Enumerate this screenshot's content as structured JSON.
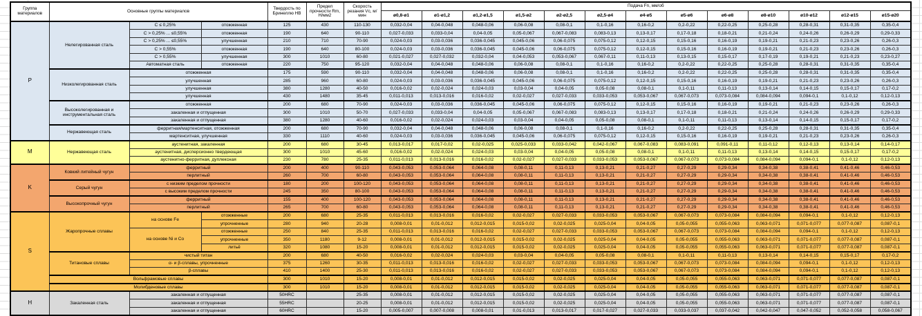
{
  "header": {
    "col_group": "Группа материалов",
    "col_main": "Основные группы материалов",
    "col_hb": "Твердость по Бринеллю НВ",
    "col_rm": "Предел прочности Rm, Н/мм2",
    "col_vc": "Скорость резания Vc, м/мин",
    "col_feed": "Подача Fn, мм/об",
    "diameters": [
      "ø0,8-ø1",
      "ø1-ø1,2",
      "ø1,2-ø1,5",
      "ø1,5-ø2",
      "ø2-ø2,5",
      "ø2,5-ø4",
      "ø4-ø5",
      "ø5-ø6",
      "ø6-ø8",
      "ø8-ø10",
      "ø10-ø12",
      "ø12-ø15",
      "ø15-ø20"
    ]
  },
  "colors": {
    "group_p": "#dce6f1",
    "group_m": "#ffff99",
    "group_k": "#f3a66e",
    "group_s": "#fcc457",
    "group_h": "#d9d9d9",
    "grid": "#2b2b2b"
  },
  "feed_patterns": {
    "A": [
      "0,032-0,04",
      "0,04-0,048",
      "0,048-0,06",
      "0,06-0,08",
      "0,08-0,1",
      "0,1-0,16",
      "0,16-0,2",
      "0,2-0,22",
      "0,22-0,25",
      "0,25-0,28",
      "0,28-0,31",
      "0,31-0,35",
      "0,35-0,4"
    ],
    "B": [
      "0,027-0,033",
      "0,033-0,04",
      "0,04-0,05",
      "0,05-0,067",
      "0,067-0,083",
      "0,083-0,13",
      "0,13-0,17",
      "0,17-0,18",
      "0,18-0,21",
      "0,21-0,24",
      "0,24-0,26",
      "0,26-0,29",
      "0,29-0,33"
    ],
    "C": [
      "0,024-0,03",
      "0,03-0,036",
      "0,036-0,045",
      "0,045-0,06",
      "0,06-0,075",
      "0,075-0,12",
      "0,12-0,15",
      "0,15-0,16",
      "0,16-0,19",
      "0,19-0,21",
      "0,21-0,23",
      "0,23-0,26",
      "0,26-0,3"
    ],
    "D": [
      "0,021-0,027",
      "0,027-0,032",
      "0,032-0,04",
      "0,04-0,053",
      "0,053-0,067",
      "0,067-0,11",
      "0,11-0,13",
      "0,13-0,15",
      "0,15-0,17",
      "0,17-0,19",
      "0,19-0,21",
      "0,21-0,23",
      "0,23-0,27"
    ],
    "E": [
      "0,016-0,02",
      "0,02-0,024",
      "0,024-0,03",
      "0,03-0,04",
      "0,04-0,05",
      "0,05-0,08",
      "0,08-0,1",
      "0,1-0,11",
      "0,11-0,13",
      "0,13-0,14",
      "0,14-0,15",
      "0,15-0,17",
      "0,17-0,2"
    ],
    "F": [
      "0,011-0,013",
      "0,013-0,016",
      "0,016-0,02",
      "0,02-0,027",
      "0,027-0,033",
      "0,033-0,053",
      "0,053-0,067",
      "0,067-0,073",
      "0,073-0,084",
      "0,084-0,094",
      "0,094-0,1",
      "0,1-0,12",
      "0,12-0,13"
    ],
    "G": [
      "0,013-0,017",
      "0,017-0,02",
      "0,02-0,025",
      "0,025-0,033",
      "0,033-0,042",
      "0,042-0,067",
      "0,067-0,083",
      "0,083-0,091",
      "0,091-0,11",
      "0,11-0,12",
      "0,12-0,13",
      "0,13-0,14",
      "0,14-0,17"
    ],
    "H": [
      "0,043-0,053",
      "0,053-0,064",
      "0,064-0,08",
      "0,08-0,11",
      "0,11-0,13",
      "0,13-0,21",
      "0,21-0,27",
      "0,27-0,29",
      "0,29-0,34",
      "0,34-0,38",
      "0,38-0,41",
      "0,41-0,46",
      "0,46-0,53"
    ],
    "I": [
      "0,008-0,01",
      "0,01-0,012",
      "0,012-0,015",
      "0,015-0,02",
      "0,02-0,025",
      "0,025-0,04",
      "0,04-0,05",
      "0,05-0,055",
      "0,055-0,063",
      "0,063-0,071",
      "0,071-0,077",
      "0,077-0,087",
      "0,087-0,1"
    ],
    "J": [
      "0,005-0,007",
      "0,007-0,008",
      "0,008-0,01",
      "0,01-0,013",
      "0,013-0,017",
      "0,017-0,027",
      "0,027-0,033",
      "0,033-0,037",
      "0,037-0,042",
      "0,042-0,047",
      "0,047-0,052",
      "0,052-0,058",
      "0,058-0,067"
    ]
  },
  "rows": [
    {
      "band": "p",
      "tb": true,
      "fp": "A",
      "cells": [
        {
          "t": "P",
          "rs": 15
        },
        {
          "t": "Нелегированная сталь",
          "rs": 6
        },
        {
          "t": "C ≤ 0,25%"
        },
        {
          "t": "отожженная"
        },
        {
          "t": "125"
        },
        {
          "t": "430"
        },
        {
          "t": "110-130"
        }
      ]
    },
    {
      "band": "p",
      "fp": "B",
      "cells": [
        {
          "t": "C > 0,25% ... ≤0,55%"
        },
        {
          "t": "отожженная"
        },
        {
          "t": "190"
        },
        {
          "t": "640"
        },
        {
          "t": "90-110"
        }
      ]
    },
    {
      "band": "p",
      "fp": "C",
      "cells": [
        {
          "t": "C > 0,25% ... ≤0,55%"
        },
        {
          "t": "улучшенная"
        },
        {
          "t": "210"
        },
        {
          "t": "710"
        },
        {
          "t": "70-90"
        }
      ]
    },
    {
      "band": "p",
      "fp": "C",
      "cells": [
        {
          "t": "C > 0,55%"
        },
        {
          "t": "отожженная"
        },
        {
          "t": "190"
        },
        {
          "t": "640"
        },
        {
          "t": "80-100"
        }
      ]
    },
    {
      "band": "p",
      "fp": "D",
      "cells": [
        {
          "t": "C > 0,55%"
        },
        {
          "t": "улучшенная"
        },
        {
          "t": "300"
        },
        {
          "t": "1010"
        },
        {
          "t": "60-80"
        }
      ]
    },
    {
      "band": "p",
      "fp": "A",
      "cells": [
        {
          "t": "Автоматная сталь"
        },
        {
          "t": "отожженная"
        },
        {
          "t": "220"
        },
        {
          "t": "750"
        },
        {
          "t": "95-120"
        }
      ]
    },
    {
      "band": "p",
      "tb": true,
      "fp": "A",
      "cells": [
        {
          "t": "Низколегированная сталь",
          "rs": 4
        },
        {
          "t": "отожженная",
          "cs": 2
        },
        {
          "t": "175"
        },
        {
          "t": "590"
        },
        {
          "t": "90-110"
        }
      ]
    },
    {
      "band": "p",
      "fp": "C",
      "cells": [
        {
          "t": "улучшенная",
          "cs": 2
        },
        {
          "t": "285"
        },
        {
          "t": "960"
        },
        {
          "t": "60-80"
        }
      ]
    },
    {
      "band": "p",
      "fp": "E",
      "cells": [
        {
          "t": "улучшенная",
          "cs": 2
        },
        {
          "t": "380"
        },
        {
          "t": "1280"
        },
        {
          "t": "40-50"
        }
      ]
    },
    {
      "band": "p",
      "fp": "F",
      "cells": [
        {
          "t": "улучшенная",
          "cs": 2
        },
        {
          "t": "430"
        },
        {
          "t": "1480"
        },
        {
          "t": "35-45"
        }
      ]
    },
    {
      "band": "p",
      "tb": true,
      "fp": "C",
      "cells": [
        {
          "t": "Высоколегированная и инструментальная сталь",
          "rs": 3
        },
        {
          "t": "отожженная",
          "cs": 2
        },
        {
          "t": "200"
        },
        {
          "t": "680"
        },
        {
          "t": "70-90"
        }
      ]
    },
    {
      "band": "p",
      "fp": "B",
      "cells": [
        {
          "t": "закаленная и отпущенная",
          "cs": 2
        },
        {
          "t": "300"
        },
        {
          "t": "1010"
        },
        {
          "t": "50-70"
        }
      ]
    },
    {
      "band": "p",
      "fp": "E",
      "cells": [
        {
          "t": "закаленная и отпущенная",
          "cs": 2
        },
        {
          "t": "380"
        },
        {
          "t": "1280"
        },
        {
          "t": "40-60"
        }
      ]
    },
    {
      "band": "p",
      "tb": true,
      "fp": "A",
      "cells": [
        {
          "t": "Нержавеющая сталь",
          "rs": 2
        },
        {
          "t": "ферритная/мартенситная, отожженная",
          "cs": 2
        },
        {
          "t": "200"
        },
        {
          "t": "680"
        },
        {
          "t": "70-90"
        }
      ]
    },
    {
      "band": "p",
      "fp": "C",
      "cells": [
        {
          "t": "мартенситная, улучшенная",
          "cs": 2
        },
        {
          "t": "330"
        },
        {
          "t": "1110"
        },
        {
          "t": "40-60"
        }
      ]
    },
    {
      "band": "m",
      "tb": true,
      "fp": "G",
      "cells": [
        {
          "t": "M",
          "rs": 3
        },
        {
          "t": "Нержавеющая сталь",
          "rs": 3
        },
        {
          "t": "аустенитная, закаленная",
          "cs": 2
        },
        {
          "t": "200"
        },
        {
          "t": "680"
        },
        {
          "t": "30-45"
        }
      ]
    },
    {
      "band": "m",
      "fp": "E",
      "cells": [
        {
          "t": "аустенитная, дисперсионно твердеющая",
          "cs": 2
        },
        {
          "t": "300"
        },
        {
          "t": "1010"
        },
        {
          "t": "45-60"
        }
      ]
    },
    {
      "band": "m",
      "fp": "F",
      "cells": [
        {
          "t": "аустенитно-ферритная, дуплексная",
          "cs": 2
        },
        {
          "t": "230"
        },
        {
          "t": "780"
        },
        {
          "t": "25-35"
        }
      ]
    },
    {
      "band": "k",
      "tb": true,
      "fp": "H",
      "cells": [
        {
          "t": "K",
          "rs": 6
        },
        {
          "t": "Ковкий литейный чугун",
          "rs": 2
        },
        {
          "t": "ферритный",
          "cs": 2
        },
        {
          "t": "200"
        },
        {
          "t": "400"
        },
        {
          "t": "90-110"
        }
      ]
    },
    {
      "band": "k",
      "fp": "H",
      "cells": [
        {
          "t": "перлитный",
          "cs": 2
        },
        {
          "t": "260"
        },
        {
          "t": "700"
        },
        {
          "t": "60-80"
        }
      ]
    },
    {
      "band": "k",
      "tb": true,
      "fp": "H",
      "cells": [
        {
          "t": "Серый чугун",
          "rs": 2
        },
        {
          "t": "с низким пределом прочности",
          "cs": 2
        },
        {
          "t": "180"
        },
        {
          "t": "200"
        },
        {
          "t": "100-120"
        }
      ]
    },
    {
      "band": "k",
      "fp": "H",
      "cells": [
        {
          "t": "с высоким пределом прочности",
          "cs": 2
        },
        {
          "t": "245"
        },
        {
          "t": "350"
        },
        {
          "t": "80-100"
        }
      ]
    },
    {
      "band": "k",
      "tb": true,
      "fp": "H",
      "cells": [
        {
          "t": "Высокопрочный чугун",
          "rs": 2
        },
        {
          "t": "ферритный",
          "cs": 2
        },
        {
          "t": "155"
        },
        {
          "t": "400"
        },
        {
          "t": "100-120"
        }
      ]
    },
    {
      "band": "k",
      "fp": "H",
      "cells": [
        {
          "t": "перлитный",
          "cs": 2
        },
        {
          "t": "265"
        },
        {
          "t": "700"
        },
        {
          "t": "60-80"
        }
      ]
    },
    {
      "band": "s",
      "tb": true,
      "fp": "F",
      "cells": [
        {
          "t": "S",
          "rs": 10
        },
        {
          "t": "Жаропрочные сплавы",
          "rs": 5
        },
        {
          "t": "на основе Fe",
          "rs": 2
        },
        {
          "t": "отожженные"
        },
        {
          "t": "200"
        },
        {
          "t": "680"
        },
        {
          "t": "25-35"
        }
      ]
    },
    {
      "band": "s",
      "fp": "I",
      "cells": [
        {
          "t": "упрочненные"
        },
        {
          "t": "280"
        },
        {
          "t": "940"
        },
        {
          "t": "20-28"
        }
      ]
    },
    {
      "band": "s",
      "fp": "F",
      "cells": [
        {
          "t": "на основе Ni и Co",
          "rs": 3
        },
        {
          "t": "отожженные"
        },
        {
          "t": "250"
        },
        {
          "t": "840"
        },
        {
          "t": "25-35"
        }
      ]
    },
    {
      "band": "s",
      "fp": "I",
      "cells": [
        {
          "t": "упрочненные"
        },
        {
          "t": "350"
        },
        {
          "t": "1180"
        },
        {
          "t": "9-12"
        }
      ]
    },
    {
      "band": "s",
      "fp": "I",
      "cells": [
        {
          "t": "литьё"
        },
        {
          "t": "320"
        },
        {
          "t": "1080"
        },
        {
          "t": "15-20"
        }
      ]
    },
    {
      "band": "s",
      "tb": true,
      "fp": "E",
      "cells": [
        {
          "t": "Титановые сплавы",
          "rs": 3
        },
        {
          "t": "чистый титан",
          "cs": 2
        },
        {
          "t": "200"
        },
        {
          "t": "680"
        },
        {
          "t": "40-50"
        }
      ]
    },
    {
      "band": "s",
      "fp": "F",
      "cells": [
        {
          "t": "α- и β-сплавы, упрочненные",
          "cs": 2
        },
        {
          "t": "375"
        },
        {
          "t": "1260"
        },
        {
          "t": "30-35"
        }
      ]
    },
    {
      "band": "s",
      "fp": "F",
      "cells": [
        {
          "t": "β-сплавы",
          "cs": 2
        },
        {
          "t": "410"
        },
        {
          "t": "1400"
        },
        {
          "t": "25-30"
        }
      ]
    },
    {
      "band": "s",
      "tb": true,
      "fp": "I",
      "cells": [
        {
          "t": "Вольфрамовые сплавы",
          "cs": 3
        },
        {
          "t": "300"
        },
        {
          "t": "1010"
        },
        {
          "t": "15-20"
        }
      ]
    },
    {
      "band": "s",
      "tb": true,
      "fp": "I",
      "cells": [
        {
          "t": "Молибденовые сплавы",
          "cs": 3
        },
        {
          "t": "300"
        },
        {
          "t": "1010"
        },
        {
          "t": "15-20"
        }
      ]
    },
    {
      "band": "h",
      "tb": true,
      "fp": "I",
      "cells": [
        {
          "t": "H",
          "rs": 3
        },
        {
          "t": "Закаленная сталь",
          "rs": 3
        },
        {
          "t": "закаленная и отпущенная",
          "cs": 2
        },
        {
          "t": "50HRC"
        },
        {
          "t": ""
        },
        {
          "t": "25-35"
        }
      ]
    },
    {
      "band": "h",
      "fp": "I",
      "cells": [
        {
          "t": "закаленная и отпущенная",
          "cs": 2
        },
        {
          "t": "55HRC"
        },
        {
          "t": ""
        },
        {
          "t": "20-25"
        }
      ]
    },
    {
      "band": "h",
      "fp": "J",
      "cells": [
        {
          "t": "закаленная и отпущенная",
          "cs": 2
        },
        {
          "t": "60HRC"
        },
        {
          "t": ""
        },
        {
          "t": "15-20"
        }
      ]
    }
  ]
}
